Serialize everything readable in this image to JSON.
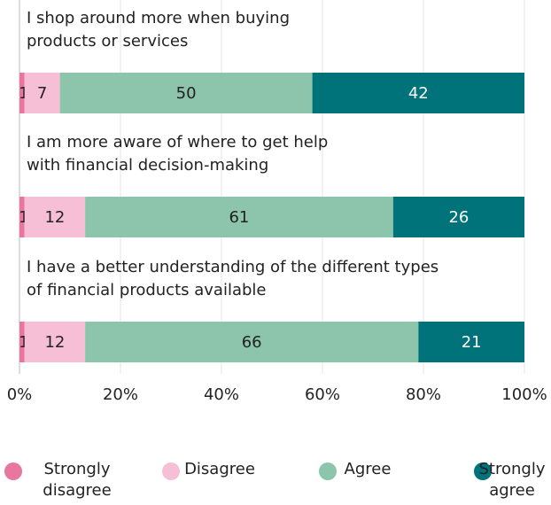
{
  "chart_data": {
    "type": "bar",
    "orientation": "horizontal",
    "stacked": true,
    "categories": [
      "I shop around more when buying products or services",
      "I am more aware of where to get help with financial decision-making",
      "I have a better understanding of the different types of financial products available"
    ],
    "series": [
      {
        "name": "Strongly disagree",
        "color": "#e8769f",
        "values": [
          1,
          1,
          1
        ]
      },
      {
        "name": "Disagree",
        "color": "#f7bfd6",
        "values": [
          7,
          12,
          12
        ]
      },
      {
        "name": "Agree",
        "color": "#8cc5ab",
        "values": [
          50,
          61,
          66
        ]
      },
      {
        "name": "Strongly agree",
        "color": "#00737a",
        "values": [
          42,
          26,
          21
        ]
      }
    ],
    "xlim": [
      0,
      100
    ],
    "xticks": [
      {
        "value": 0,
        "label": "0%"
      },
      {
        "value": 20,
        "label": "20%"
      },
      {
        "value": 40,
        "label": "40%"
      },
      {
        "value": 60,
        "label": "60%"
      },
      {
        "value": 80,
        "label": "80%"
      },
      {
        "value": 100,
        "label": "100%"
      }
    ],
    "grid": true,
    "legend": "bottom"
  }
}
